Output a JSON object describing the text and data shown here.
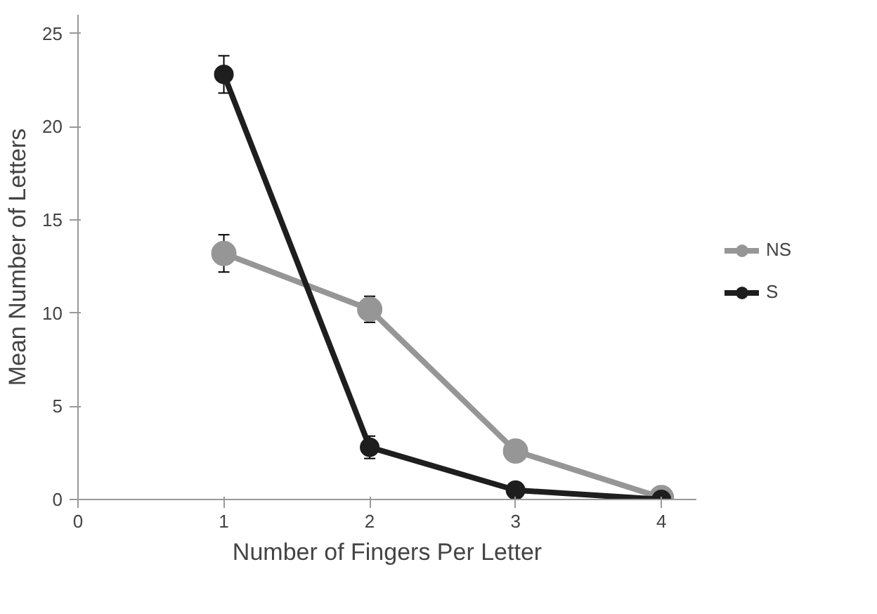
{
  "chart_data": {
    "type": "line",
    "xlabel": "Number of Fingers Per Letter",
    "ylabel": "Mean Number of Letters",
    "x": [
      1,
      2,
      3,
      4
    ],
    "series": [
      {
        "name": "NS",
        "color": "#969696",
        "values": [
          13.2,
          10.2,
          2.6,
          0.1
        ],
        "errors": [
          1.0,
          0.7,
          null,
          null
        ]
      },
      {
        "name": "S",
        "color": "#1e1e1e",
        "values": [
          22.8,
          2.8,
          0.5,
          0.0
        ],
        "errors": [
          1.0,
          0.6,
          null,
          null
        ]
      }
    ],
    "xlim": [
      0,
      4.24
    ],
    "ylim": [
      0,
      26
    ],
    "xticks": [
      0,
      1,
      2,
      3,
      4
    ],
    "yticks": [
      0,
      5,
      10,
      15,
      20,
      25
    ],
    "grid": false,
    "legend": "right",
    "marker": "circle",
    "line_style": "solid"
  }
}
